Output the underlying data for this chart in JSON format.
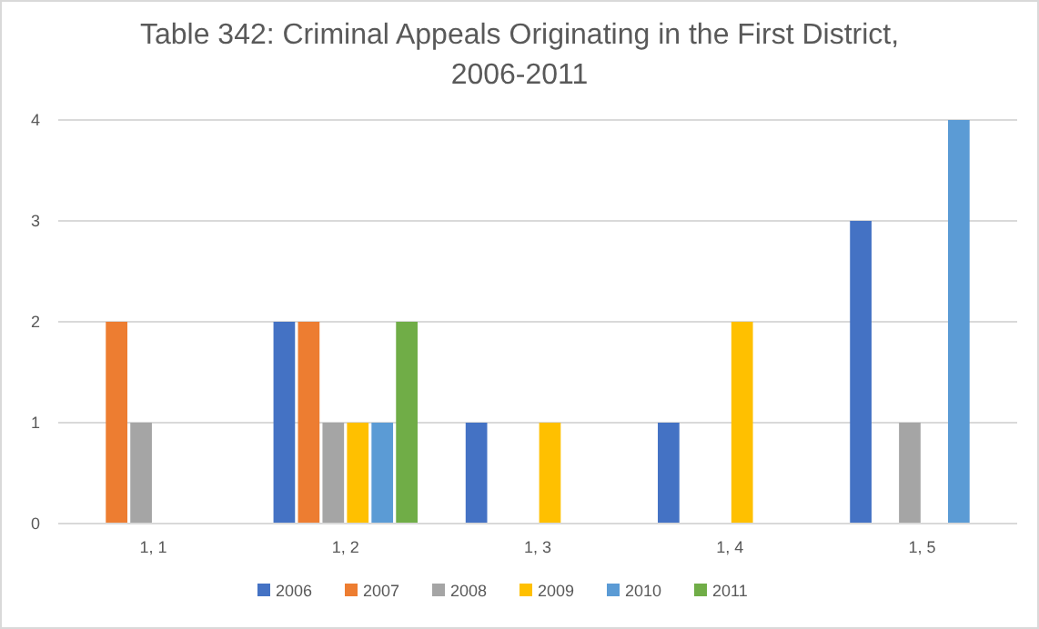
{
  "chart_data": {
    "type": "bar",
    "title": "Table 342: Criminal Appeals Originating in the First District, 2006-2011",
    "categories": [
      "1, 1",
      "1, 2",
      "1, 3",
      "1, 4",
      "1, 5"
    ],
    "series": [
      {
        "name": "2006",
        "color": "#4472c4",
        "values": [
          null,
          2,
          1,
          1,
          3
        ]
      },
      {
        "name": "2007",
        "color": "#ed7d31",
        "values": [
          2,
          2,
          null,
          null,
          null
        ]
      },
      {
        "name": "2008",
        "color": "#a5a5a5",
        "values": [
          1,
          1,
          null,
          null,
          1
        ]
      },
      {
        "name": "2009",
        "color": "#ffc000",
        "values": [
          null,
          1,
          1,
          2,
          null
        ]
      },
      {
        "name": "2010",
        "color": "#5b9bd5",
        "values": [
          null,
          1,
          null,
          null,
          4
        ]
      },
      {
        "name": "2011",
        "color": "#70ad47",
        "values": [
          null,
          2,
          null,
          null,
          null
        ]
      }
    ],
    "ylim": [
      0,
      4
    ],
    "yticks": [
      0,
      1,
      2,
      3,
      4
    ],
    "grid": "y",
    "legend": "bottom"
  }
}
